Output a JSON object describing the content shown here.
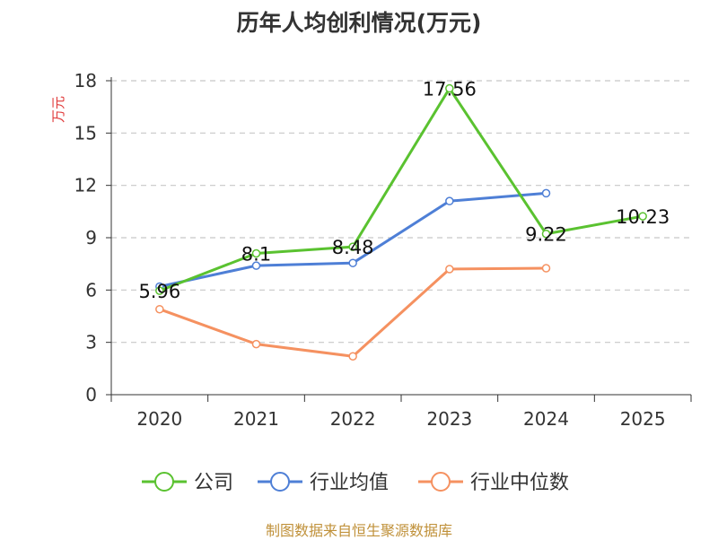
{
  "chart_data": {
    "type": "line",
    "title": "历年人均创利情况(万元)",
    "ylabel": "万元",
    "xlabel": "",
    "categories": [
      "2020",
      "2021",
      "2022",
      "2023",
      "2024",
      "2025"
    ],
    "ylim": [
      0,
      18
    ],
    "yticks": [
      0,
      3,
      6,
      9,
      12,
      15,
      18
    ],
    "grid": true,
    "legend_position": "bottom",
    "series": [
      {
        "name": "公司",
        "color": "#5ac230",
        "values": [
          5.96,
          8.1,
          8.48,
          17.56,
          9.22,
          10.23
        ],
        "data_labels": [
          "5.96",
          "8.1",
          "8.48",
          "17.56",
          "9.22",
          "10.23"
        ]
      },
      {
        "name": "行业均值",
        "color": "#4e7fd6",
        "values": [
          6.2,
          7.4,
          7.55,
          11.1,
          11.55,
          null
        ]
      },
      {
        "name": "行业中位数",
        "color": "#f59160",
        "values": [
          4.9,
          2.9,
          2.2,
          7.2,
          7.25,
          null
        ]
      }
    ]
  },
  "footer": "制图数据来自恒生聚源数据库"
}
